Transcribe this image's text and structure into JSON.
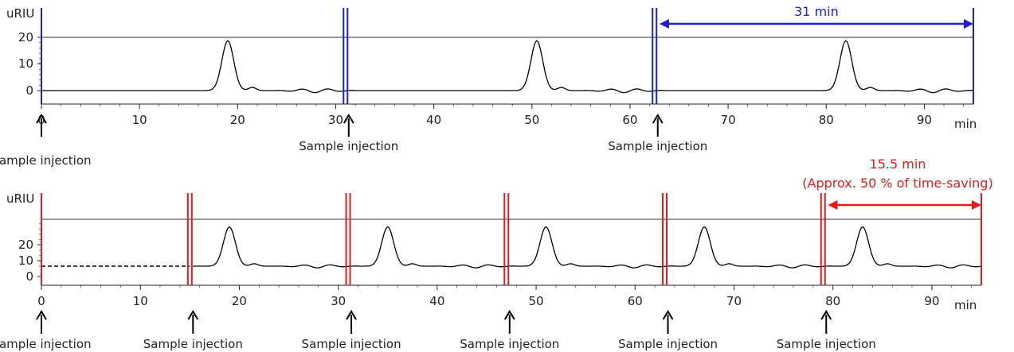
{
  "chart_data": [
    {
      "type": "line",
      "ylabel": "uRIU",
      "xlabel": "min",
      "xlim": [
        0,
        95
      ],
      "x_ticks": [
        0,
        10,
        20,
        30,
        40,
        50,
        60,
        70,
        80,
        90
      ],
      "y_ticks": [
        0,
        10,
        20
      ],
      "grid": false,
      "peaks_min": [
        19,
        50.5,
        82
      ],
      "peak_height_uRIU": 19,
      "dashed_segment_min": null,
      "injection_marks_min": [
        0,
        31,
        62.5
      ],
      "injection_label": "Sample injection",
      "accent_color": "#1d1dd6",
      "interval_annotation": {
        "text": "31 min",
        "from_min": 63,
        "to_min": 95
      }
    },
    {
      "type": "line",
      "ylabel": "uRIU",
      "xlabel": "min",
      "xlim": [
        0,
        95
      ],
      "x_ticks": [
        0,
        10,
        20,
        30,
        40,
        50,
        60,
        70,
        80,
        90
      ],
      "y_ticks": [
        0,
        10,
        20
      ],
      "grid": false,
      "peaks_min": [
        19,
        35,
        51,
        67,
        83
      ],
      "peak_height_uRIU": 19,
      "dashed_segment_min": [
        0,
        15
      ],
      "injection_marks_min": [
        0,
        15,
        31,
        47,
        63,
        79
      ],
      "injection_label": "Sample injection",
      "accent_color": "#e81919",
      "interval_annotation": {
        "text": "15.5 min",
        "subtext": "(Approx. 50 % of time-saving)",
        "from_min": 79.5,
        "to_min": 95
      }
    }
  ]
}
